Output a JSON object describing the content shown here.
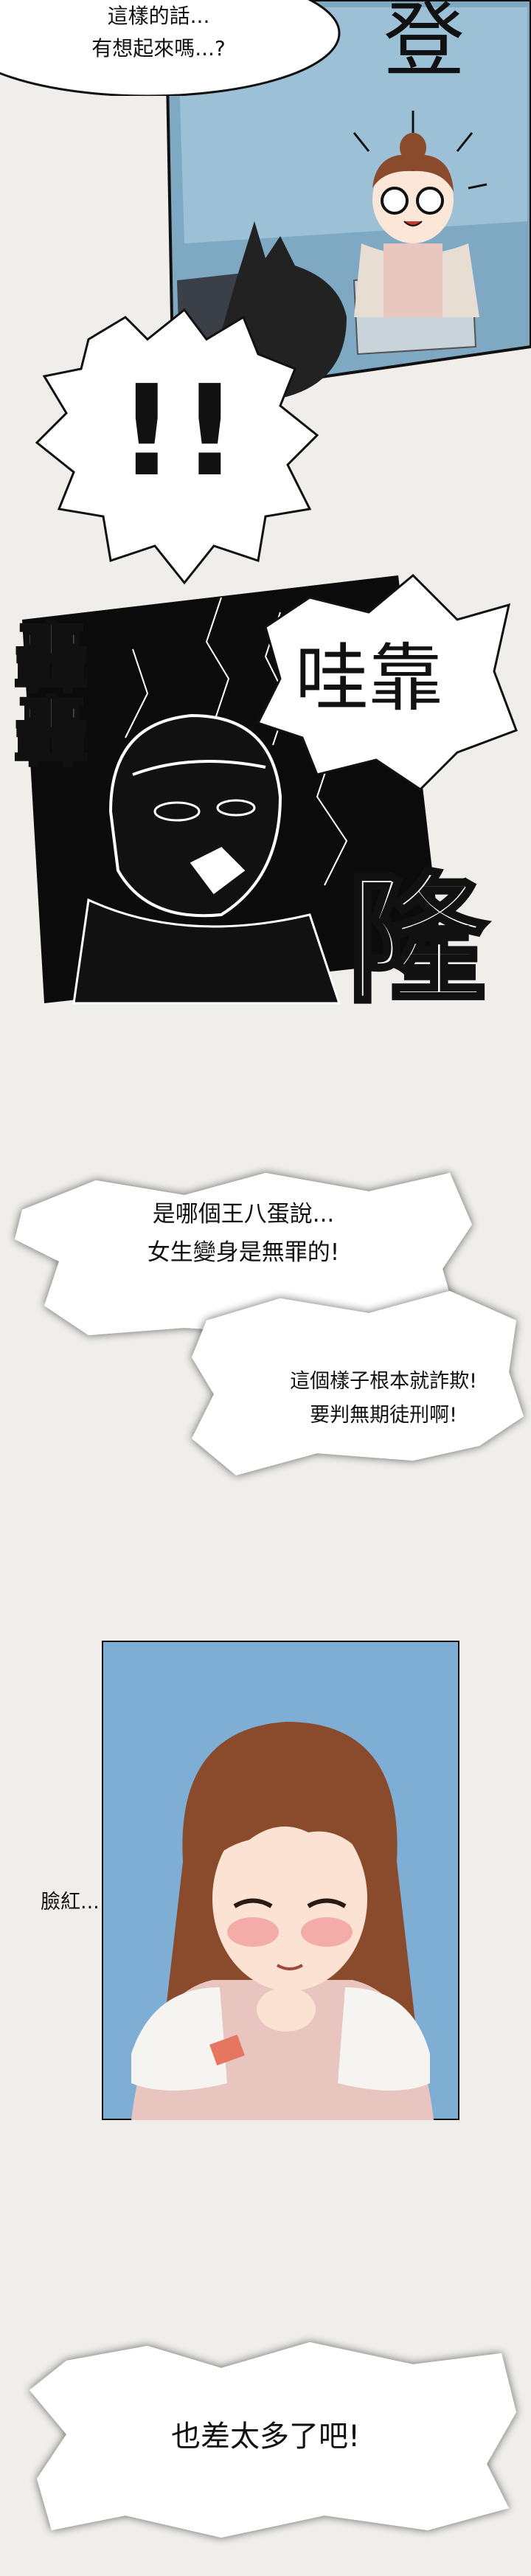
{
  "panel1": {
    "speech_line1": "這樣的話...",
    "speech_line2": "有想起來嗎...?",
    "sfx_appear": "登"
  },
  "panel2": {
    "shock_marks": "!!"
  },
  "panel3": {
    "sfx_rumble_left": "轟轟",
    "sfx_wow": "哇靠",
    "sfx_rumble_right": "隆"
  },
  "panel4": {
    "speech_a_line1": "是哪個王八蛋說...",
    "speech_a_line2": "女生變身是無罪的!",
    "speech_b_line1": "這個樣子根本就詐欺!",
    "speech_b_line2": "要判無期徒刑啊!"
  },
  "panel5": {
    "blush_caption": "臉紅..."
  },
  "panel6": {
    "speech_line1": "也差太多了吧!"
  },
  "colors": {
    "background": "#f0eeea",
    "office_blue": "#7fa9c2",
    "dark_panel": "#0b0b0b",
    "portrait_bg": "#7eaed3",
    "hair_brown": "#8a4b2c",
    "coat_pink": "#e9c5c0"
  }
}
